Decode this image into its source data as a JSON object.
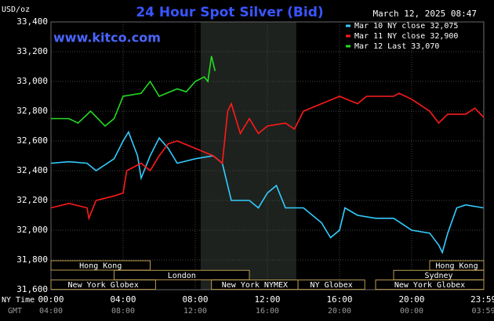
{
  "chart_data": {
    "type": "line",
    "title": "24 Hour Spot Silver (Bid)",
    "timestamp": "March 12, 2025 08:47",
    "watermark": "www.kitco.com",
    "y_label": "USD/oz",
    "x_row_labels": [
      "NY Time",
      "GMT"
    ],
    "ylim": [
      31600,
      33400
    ],
    "yticks": [
      {
        "value": 31600,
        "label": "31,600"
      },
      {
        "value": 31800,
        "label": "31,800"
      },
      {
        "value": 32000,
        "label": "32,000"
      },
      {
        "value": 32200,
        "label": "32,200"
      },
      {
        "value": 32400,
        "label": "32,400"
      },
      {
        "value": 32600,
        "label": "32,600"
      },
      {
        "value": 32800,
        "label": "32,800"
      },
      {
        "value": 33000,
        "label": "33,000"
      },
      {
        "value": 33200,
        "label": "33,200"
      },
      {
        "value": 33400,
        "label": "33,400"
      }
    ],
    "xlim": [
      0,
      24
    ],
    "xticks": [
      {
        "value": 0,
        "label": "00:00"
      },
      {
        "value": 4,
        "label": "04:00"
      },
      {
        "value": 8,
        "label": "08:00"
      },
      {
        "value": 12,
        "label": "12:00"
      },
      {
        "value": 16,
        "label": "16:00"
      },
      {
        "value": 20,
        "label": "20:00"
      },
      {
        "value": 23.98,
        "label": "23:59"
      }
    ],
    "gmt_tick_labels": [
      "04:00",
      "08:00",
      "12:00",
      "16:00",
      "20:00",
      "00:00",
      "03:59"
    ],
    "grid": true,
    "sessions": [
      "Hong Kong",
      "Hong Kong",
      "London",
      "Sydney",
      "New York Globex",
      "New York NYMEX",
      "NY Globex",
      "New York Globex"
    ],
    "series": [
      {
        "name": "Mar 10 NY close 32,075",
        "color": "#33ccff",
        "x": [
          0,
          1,
          2,
          2.5,
          3.5,
          4,
          4.3,
          4.8,
          5,
          5.5,
          6,
          6.5,
          7,
          8,
          9,
          9.5,
          10,
          11,
          11.5,
          12,
          12.5,
          13,
          14,
          15,
          15.5,
          16,
          16.3,
          17,
          18,
          19,
          20,
          21,
          21.5,
          21.7,
          22,
          22.5,
          23,
          23.98
        ],
        "values": [
          32450,
          32460,
          32450,
          32400,
          32480,
          32600,
          32660,
          32500,
          32350,
          32500,
          32620,
          32550,
          32450,
          32480,
          32500,
          32450,
          32200,
          32200,
          32150,
          32250,
          32300,
          32150,
          32150,
          32050,
          31950,
          32000,
          32150,
          32100,
          32080,
          32080,
          32000,
          31980,
          31900,
          31850,
          31980,
          32150,
          32170,
          32150
        ]
      },
      {
        "name": "Mar 11 NY close 32,900",
        "color": "#ff1a1a",
        "x": [
          0,
          1,
          2,
          2.1,
          2.5,
          3.5,
          4,
          4.2,
          5,
          5.5,
          6,
          6.5,
          7,
          8,
          9,
          9.5,
          9.8,
          10,
          10.5,
          11,
          11.5,
          12,
          13,
          13.5,
          14,
          15,
          16,
          17,
          17.5,
          19,
          19.3,
          20,
          21,
          21.5,
          22,
          23,
          23.5,
          23.98
        ],
        "values": [
          32150,
          32180,
          32150,
          32080,
          32200,
          32230,
          32250,
          32400,
          32450,
          32400,
          32500,
          32580,
          32600,
          32550,
          32500,
          32450,
          32800,
          32850,
          32650,
          32750,
          32650,
          32700,
          32720,
          32680,
          32800,
          32850,
          32900,
          32850,
          32900,
          32900,
          32920,
          32880,
          32800,
          32720,
          32780,
          32780,
          32820,
          32760
        ]
      },
      {
        "name": "Mar 12 Last 33,070",
        "color": "#22dd22",
        "x": [
          0,
          1,
          1.5,
          2.2,
          3,
          3.5,
          4,
          5,
          5.5,
          6,
          7,
          7.5,
          8,
          8.5,
          8.7,
          8.9,
          9.1
        ],
        "values": [
          32750,
          32750,
          32720,
          32800,
          32700,
          32750,
          32900,
          32920,
          33000,
          32900,
          32950,
          32930,
          33000,
          33030,
          33000,
          33170,
          33070
        ]
      }
    ]
  }
}
